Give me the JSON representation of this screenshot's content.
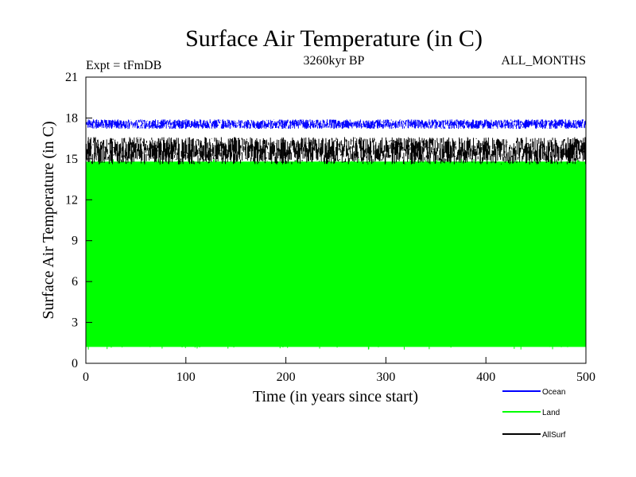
{
  "chart_data": {
    "type": "line",
    "title": "Surface Air Temperature (in C)",
    "subtitle": "3260kyr BP",
    "experiment_label": "Expt = tFmDB",
    "months_label": "ALL_MONTHS",
    "xlabel": "Time (in years since start)",
    "ylabel": "Surface Air Temperature (in C)",
    "xlim": [
      0,
      500
    ],
    "ylim": [
      0,
      21
    ],
    "xticks": [
      0,
      100,
      200,
      300,
      400,
      500
    ],
    "yticks": [
      0,
      3,
      6,
      9,
      12,
      15,
      18,
      21
    ],
    "xtick_labels": [
      "0",
      "100",
      "200",
      "300",
      "400",
      "500"
    ],
    "ytick_labels": [
      "0",
      "3",
      "6",
      "9",
      "12",
      "15",
      "18",
      "21"
    ],
    "legend_position": "bottom-right",
    "series": [
      {
        "name": "Ocean",
        "color": "#0000ff",
        "band": [
          17.2,
          17.9
        ],
        "typical_mean": 17.5
      },
      {
        "name": "Land",
        "color": "#00ff00",
        "band": [
          1.0,
          15.0
        ],
        "min_spike": 0.3,
        "max_spike": 15.5
      },
      {
        "name": "AllSurf",
        "color": "#000000",
        "band": [
          14.6,
          16.6
        ],
        "typical_mean": 15.6
      }
    ]
  }
}
